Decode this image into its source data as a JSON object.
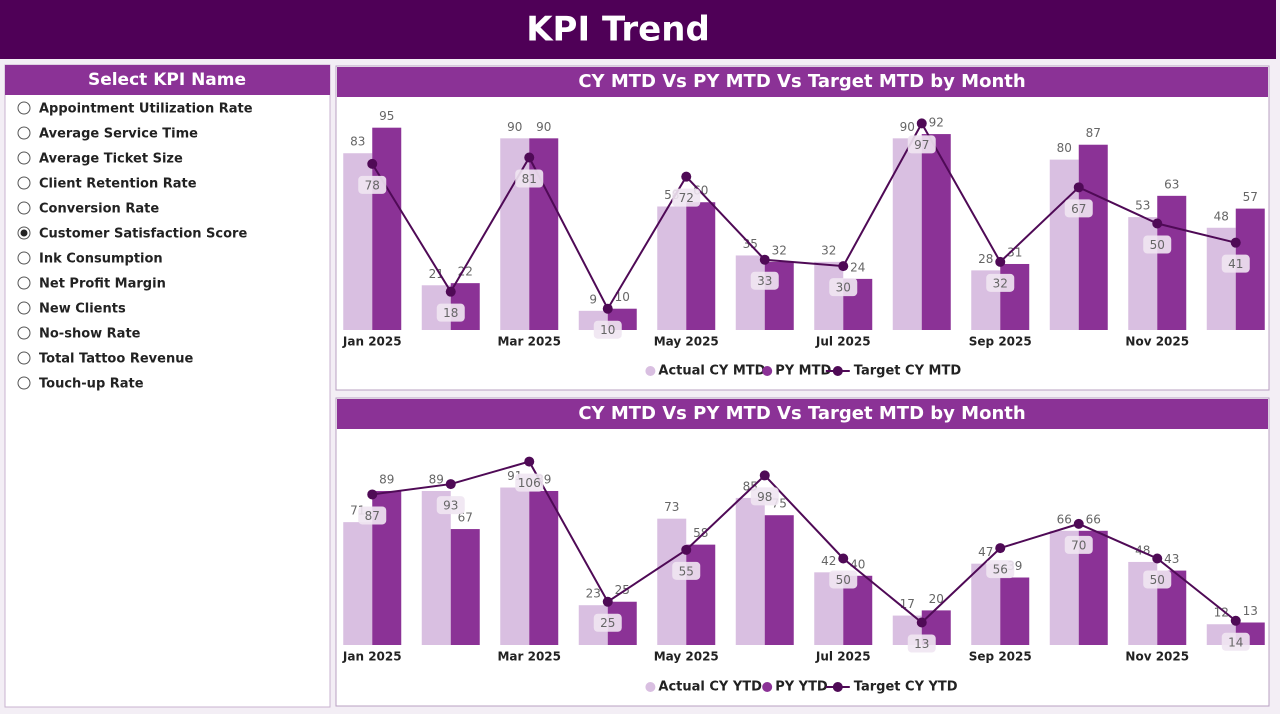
{
  "header": {
    "title": "KPI Trend"
  },
  "sidebar": {
    "title": "Select KPI Name",
    "selected_index": 5,
    "options": [
      "Appointment Utilization Rate",
      "Average Service Time",
      "Average Ticket Size",
      "Client Retention Rate",
      "Conversion Rate",
      "Customer Satisfaction Score",
      "Ink Consumption",
      "Net Profit Margin",
      "New Clients",
      "No-show Rate",
      "Total Tattoo Revenue",
      "Touch-up Rate"
    ]
  },
  "chart_data": [
    {
      "type": "bar",
      "title": "CY MTD Vs PY MTD Vs Target MTD by Month",
      "categories": [
        "Jan 2025",
        null,
        "Mar 2025",
        null,
        "May 2025",
        null,
        "Jul 2025",
        null,
        "Sep 2025",
        null,
        "Nov 2025",
        null
      ],
      "ylim": [
        0,
        108
      ],
      "series": [
        {
          "name": "Actual CY MTD",
          "color": "#d9bfe1",
          "values": [
            83,
            21,
            90,
            9,
            58,
            35,
            32,
            90,
            28,
            80,
            53,
            48
          ]
        },
        {
          "name": "PY MTD",
          "color": "#8b3296",
          "values": [
            95,
            22,
            90,
            10,
            60,
            32,
            24,
            92,
            31,
            87,
            63,
            57
          ]
        },
        {
          "name": "Target CY MTD",
          "color": "#4f0a56",
          "type": "line",
          "values": [
            78,
            18,
            81,
            10,
            72,
            33,
            30,
            97,
            32,
            67,
            50,
            41
          ]
        }
      ]
    },
    {
      "type": "bar",
      "title": "CY MTD Vs PY MTD Vs Target MTD by Month",
      "categories": [
        "Jan 2025",
        null,
        "Mar 2025",
        null,
        "May 2025",
        null,
        "Jul 2025",
        null,
        "Sep 2025",
        null,
        "Nov 2025",
        null
      ],
      "ylim": [
        0,
        115
      ],
      "series": [
        {
          "name": "Actual CY YTD",
          "color": "#d9bfe1",
          "values": [
            71,
            89,
            91,
            23,
            73,
            85,
            42,
            17,
            47,
            66,
            48,
            12
          ]
        },
        {
          "name": "PY YTD",
          "color": "#8b3296",
          "values": [
            89,
            67,
            89,
            25,
            58,
            75,
            40,
            20,
            39,
            66,
            43,
            13
          ]
        },
        {
          "name": "Target CY YTD",
          "color": "#4f0a56",
          "type": "line",
          "values": [
            87,
            93,
            106,
            25,
            55,
            98,
            50,
            13,
            56,
            70,
            50,
            14
          ]
        }
      ]
    }
  ]
}
